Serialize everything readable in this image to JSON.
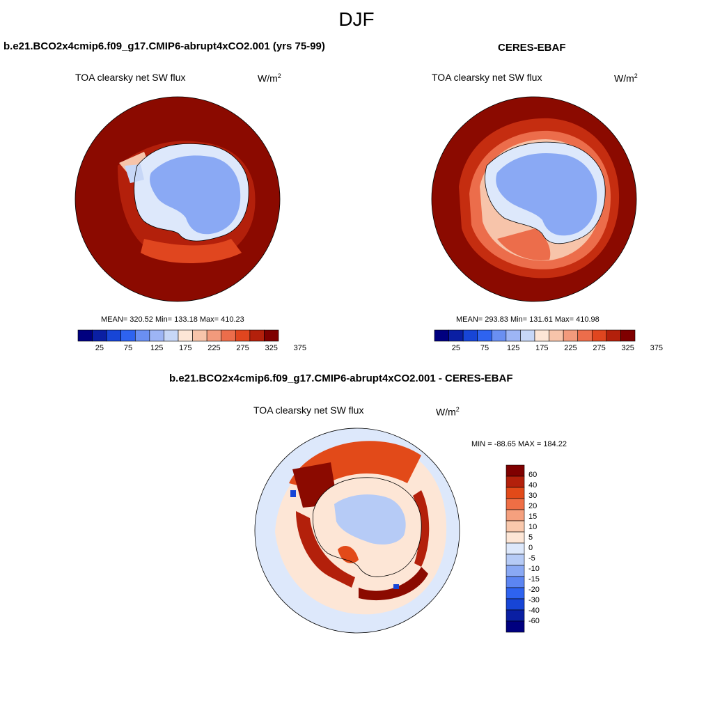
{
  "season": "DJF",
  "colors": {
    "coast": "#000000",
    "map_palette": [
      "#00007f",
      "#0a1fa3",
      "#1745d6",
      "#2e63f0",
      "#6a8ff2",
      "#9db5f5",
      "#c7d7f7",
      "#fde6d6",
      "#f7c4aa",
      "#f29a7c",
      "#ec6d4b",
      "#e0461f",
      "#b3200b",
      "#7f0000"
    ],
    "diff_palette": [
      "#00007f",
      "#0a1fa3",
      "#1745d6",
      "#2e63f0",
      "#5c85f2",
      "#8aa9f4",
      "#b6cbf6",
      "#dde8fb",
      "#fde6d6",
      "#f9c8ac",
      "#f5a07e",
      "#ef6e45",
      "#e24a19",
      "#b3200b",
      "#7f0000"
    ]
  },
  "panels": [
    {
      "id": "model",
      "title": "b.e21.BCO2x4cmip6.f09_g17.CMIP6-abrupt4xCO2.001 (yrs 75-99)",
      "variable": "TOA clearsky net SW flux",
      "units_base": "W/m",
      "units_exp": "2",
      "stats": "MEAN= 320.52  Min= 133.18  Max= 410.23",
      "colorbar_ticks": [
        "25",
        "75",
        "125",
        "175",
        "225",
        "275",
        "325",
        "375"
      ]
    },
    {
      "id": "obs",
      "title": "CERES-EBAF",
      "variable": "TOA clearsky net SW flux",
      "units_base": "W/m",
      "units_exp": "2",
      "stats": "MEAN= 293.83  Min= 131.61  Max= 410.98",
      "colorbar_ticks": [
        "25",
        "75",
        "125",
        "175",
        "225",
        "275",
        "325",
        "375"
      ]
    }
  ],
  "difference": {
    "title": "b.e21.BCO2x4cmip6.f09_g17.CMIP6-abrupt4xCO2.001 - CERES-EBAF",
    "variable": "TOA clearsky net SW flux",
    "units_base": "W/m",
    "units_exp": "2",
    "stats": "MIN = -88.65 MAX = 184.22",
    "colorbar_labels": [
      "60",
      "40",
      "30",
      "20",
      "15",
      "10",
      "5",
      "0",
      "-5",
      "-10",
      "-15",
      "-20",
      "-30",
      "-40",
      "-60"
    ]
  }
}
